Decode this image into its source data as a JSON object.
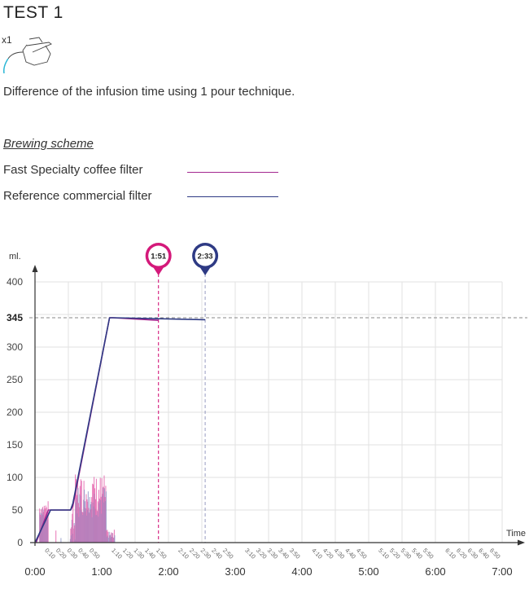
{
  "header": {
    "title": "TEST 1",
    "pour_count": "x1",
    "description": "Difference of the infusion time using 1 pour technique."
  },
  "legend": {
    "heading": "Brewing scheme",
    "items": [
      {
        "label": "Fast Specialty coffee filter",
        "color": "#a3278f"
      },
      {
        "label": "Reference commercial filter",
        "color": "#2e3a84"
      }
    ]
  },
  "markers": [
    {
      "label": "1:51",
      "time_s": 111,
      "color": "#d4197a"
    },
    {
      "label": "2:33",
      "time_s": 153,
      "color": "#2e3a84"
    }
  ],
  "colors": {
    "pink_flow": "#e35aa8",
    "blue_flow": "#8f97c8",
    "grid": "#e2e2e2",
    "axis": "#333333",
    "reference": "#888888"
  },
  "icons": {
    "kettle": "kettle-icon"
  },
  "chart_data": {
    "type": "line",
    "ylabel": "ml.",
    "xlabel": "Time",
    "ylim": [
      0,
      400
    ],
    "xlim_s": [
      0,
      420
    ],
    "y_ticks": [
      "0",
      "50",
      "100",
      "150",
      "200",
      "250",
      "300",
      "345",
      "400"
    ],
    "x_major_ticks": [
      "0:00",
      "1:00",
      "2:00",
      "3:00",
      "4:00",
      "5:00",
      "6:00",
      "7:00"
    ],
    "x_minor_ticks": [
      "0:10",
      "0:20",
      "0:30",
      "0:40",
      "0:50",
      "1:10",
      "1:20",
      "1:30",
      "1:40",
      "1:50",
      "2:10",
      "2:20",
      "2:30",
      "2:40",
      "2:50",
      "3:10",
      "3:20",
      "3:30",
      "3:40",
      "3:50",
      "4:10",
      "4:20",
      "4:30",
      "4:40",
      "4:50",
      "5:10",
      "5:20",
      "5:30",
      "5:40",
      "5:50",
      "6:10",
      "6:20",
      "6:30",
      "6:40",
      "6:50"
    ],
    "reference_line": {
      "label": "345",
      "y": 345
    },
    "grid": true,
    "series": [
      {
        "color": "#a3278f",
        "x_s": [
          1,
          12,
          32,
          34,
          67,
          70,
          111
        ],
        "y": [
          0,
          50,
          50,
          56,
          345,
          345,
          341
        ]
      },
      {
        "color": "#2e3a84",
        "x_s": [
          0,
          14,
          32,
          34,
          67,
          70,
          153
        ],
        "y": [
          0,
          50,
          50,
          60,
          345,
          345,
          342
        ]
      }
    ],
    "flow_bars_note_max": 110
  }
}
